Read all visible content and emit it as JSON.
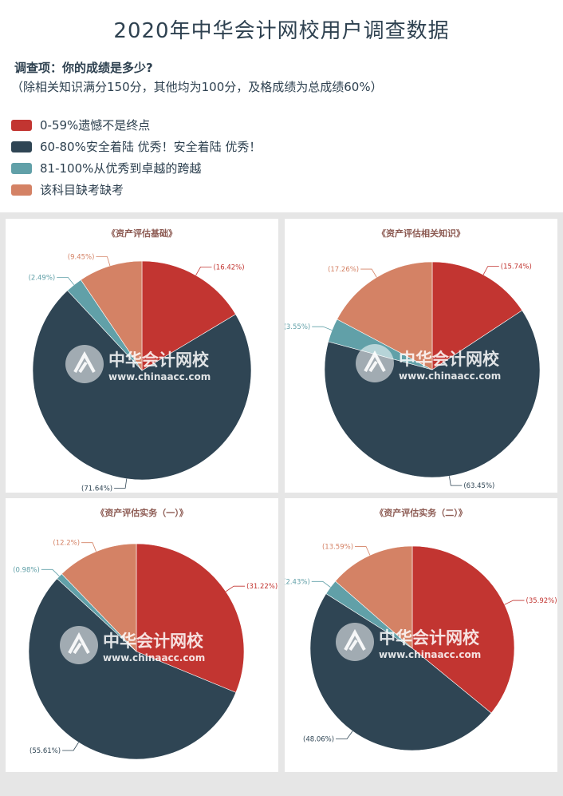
{
  "header": {
    "title": "2020年中华会计网校用户调查数据",
    "question": "调查项：你的成绩是多少?",
    "note": "（除相关知识满分150分，其他均为100分，及格成绩为总成绩60%）"
  },
  "legend": [
    {
      "label": "0-59%遗憾不是终点",
      "color": "#c23531"
    },
    {
      "label": "60-80%安全着陆 优秀！安全着陆 优秀！",
      "color": "#2f4554"
    },
    {
      "label": "81-100%从优秀到卓越的跨越",
      "color": "#61a0a8"
    },
    {
      "label": "该科目缺考缺考",
      "color": "#d48265"
    }
  ],
  "watermark": {
    "name": "中华会计网校",
    "url": "www.chinaacc.com"
  },
  "chart_data": [
    {
      "type": "pie",
      "title": "《资产评估基础》",
      "series": [
        {
          "name": "0-59%遗憾不是终点",
          "value": 16.42,
          "label": "(16.42%)"
        },
        {
          "name": "60-80%安全着陆 优秀！安全着陆 优秀！",
          "value": 71.64,
          "label": "(71.64%)"
        },
        {
          "name": "81-100%从优秀到卓越的跨越",
          "value": 2.49,
          "label": "(2.49%)"
        },
        {
          "name": "该科目缺考缺考",
          "value": 9.45,
          "label": "(9.45%)"
        }
      ]
    },
    {
      "type": "pie",
      "title": "《资产评估相关知识》",
      "series": [
        {
          "name": "0-59%遗憾不是终点",
          "value": 15.74,
          "label": "(15.74%)"
        },
        {
          "name": "60-80%安全着陆 优秀！安全着陆 优秀！",
          "value": 63.45,
          "label": "(63.45%)"
        },
        {
          "name": "81-100%从优秀到卓越的跨越",
          "value": 3.55,
          "label": "(3.55%)"
        },
        {
          "name": "该科目缺考缺考",
          "value": 17.26,
          "label": "(17.26%)"
        }
      ]
    },
    {
      "type": "pie",
      "title": "《资产评估实务（一）》",
      "series": [
        {
          "name": "0-59%遗憾不是终点",
          "value": 31.22,
          "label": "(31.22%)"
        },
        {
          "name": "60-80%安全着陆 优秀！安全着陆 优秀！",
          "value": 55.61,
          "label": "(55.61%)"
        },
        {
          "name": "81-100%从优秀到卓越的跨越",
          "value": 0.98,
          "label": "(0.98%)"
        },
        {
          "name": "该科目缺考缺考",
          "value": 12.2,
          "label": "(12.2%)"
        }
      ]
    },
    {
      "type": "pie",
      "title": "《资产评估实务（二）》",
      "series": [
        {
          "name": "0-59%遗憾不是终点",
          "value": 35.92,
          "label": "(35.92%)"
        },
        {
          "name": "60-80%安全着陆 优秀！安全着陆 优秀！",
          "value": 48.06,
          "label": "(48.06%)"
        },
        {
          "name": "81-100%从优秀到卓越的跨越",
          "value": 2.43,
          "label": "(2.43%)"
        },
        {
          "name": "该科目缺考缺考",
          "value": 13.59,
          "label": "(13.59%)"
        }
      ]
    }
  ]
}
